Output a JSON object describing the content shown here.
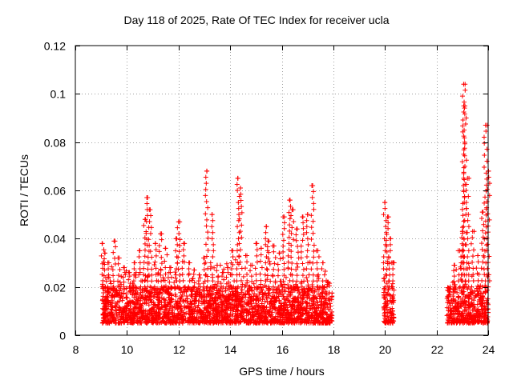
{
  "chart_data": {
    "type": "scatter",
    "title": "Day 118 of 2025, Rate Of TEC Index for receiver ucla",
    "xlabel": "GPS time / hours",
    "ylabel": "ROTI / TECUs",
    "xlim": [
      8,
      24
    ],
    "ylim": [
      0,
      0.12
    ],
    "xticks": [
      8,
      10,
      12,
      14,
      16,
      18,
      20,
      22,
      24
    ],
    "xtick_labels": [
      "8",
      "10",
      "12",
      "14",
      "16",
      "18",
      "20",
      "22",
      "24"
    ],
    "yticks": [
      0,
      0.02,
      0.04,
      0.06,
      0.08,
      0.1,
      0.12
    ],
    "ytick_labels": [
      "0",
      "0.02",
      "0.04",
      "0.06",
      "0.08",
      "0.1",
      "0.12"
    ],
    "grid": true,
    "marker": "+",
    "color": "#ff0000",
    "series": [
      {
        "name": "ROTI",
        "x": [
          9.05,
          9.15,
          9.3,
          9.5,
          9.7,
          9.9,
          10.1,
          10.3,
          10.5,
          10.7,
          10.8,
          10.9,
          11.1,
          11.3,
          11.5,
          11.7,
          11.9,
          12.0,
          12.2,
          12.4,
          12.6,
          12.8,
          13.0,
          13.1,
          13.3,
          13.5,
          13.7,
          13.9,
          14.1,
          14.3,
          14.4,
          14.6,
          14.8,
          15.0,
          15.2,
          15.4,
          15.5,
          15.7,
          15.9,
          16.1,
          16.3,
          16.4,
          16.6,
          16.8,
          17.0,
          17.2,
          17.4,
          17.6,
          17.8,
          20.0,
          20.1,
          20.2,
          20.3,
          22.5,
          22.7,
          22.9,
          23.0,
          23.05,
          23.1,
          23.2,
          23.4,
          23.6,
          23.8,
          23.9,
          24.0
        ],
        "y": [
          0.038,
          0.034,
          0.03,
          0.039,
          0.032,
          0.028,
          0.026,
          0.03,
          0.035,
          0.048,
          0.057,
          0.052,
          0.038,
          0.042,
          0.036,
          0.028,
          0.04,
          0.047,
          0.038,
          0.03,
          0.027,
          0.025,
          0.032,
          0.068,
          0.05,
          0.029,
          0.026,
          0.028,
          0.035,
          0.065,
          0.061,
          0.033,
          0.029,
          0.038,
          0.036,
          0.045,
          0.039,
          0.037,
          0.034,
          0.049,
          0.056,
          0.052,
          0.044,
          0.049,
          0.05,
          0.062,
          0.035,
          0.03,
          0.022,
          0.055,
          0.049,
          0.04,
          0.03,
          0.018,
          0.029,
          0.035,
          0.043,
          0.104,
          0.095,
          0.065,
          0.043,
          0.033,
          0.051,
          0.087,
          0.068
        ],
        "baseline_range": [
          0.005,
          0.02
        ]
      }
    ]
  }
}
